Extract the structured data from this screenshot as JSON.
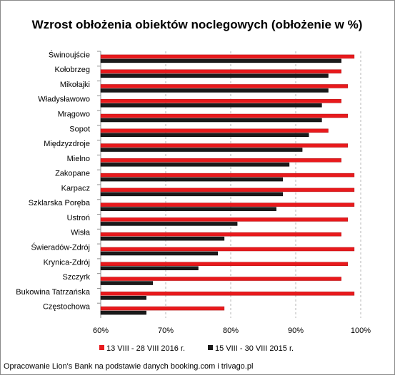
{
  "chart_data": {
    "type": "bar",
    "orientation": "horizontal",
    "title": "Wzrost obłożenia obiektów noclegowych (obłożenie w %)",
    "categories": [
      "Świnoujście",
      "Kołobrzeg",
      "Mikołajki",
      "Władysławowo",
      "Mrągowo",
      "Sopot",
      "Międzyzdroje",
      "Mielno",
      "Zakopane",
      "Karpacz",
      "Szklarska Poręba",
      "Ustroń",
      "Wisła",
      "Świeradów-Zdrój",
      "Krynica-Zdrój",
      "Szczyrk",
      "Bukowina Tatrzańska",
      "Częstochowa"
    ],
    "series": [
      {
        "name": "13 VIII - 28 VIII 2016 r.",
        "color": "#e8191c",
        "values": [
          99,
          97,
          98,
          97,
          98,
          95,
          98,
          97,
          99,
          99,
          99,
          98,
          97,
          99,
          98,
          97,
          99,
          79
        ]
      },
      {
        "name": "15 VIII - 30 VIII 2015 r.",
        "color": "#1a1a1a",
        "values": [
          97,
          95,
          95,
          94,
          94,
          92,
          91,
          89,
          88,
          88,
          87,
          81,
          79,
          78,
          75,
          68,
          67,
          67
        ]
      }
    ],
    "xlim": [
      60,
      100
    ],
    "xticks": [
      "60%",
      "70%",
      "80%",
      "90%",
      "100%"
    ],
    "xtick_values": [
      60,
      70,
      80,
      90,
      100
    ],
    "grid": "vertical dashed",
    "legend_position": "bottom"
  },
  "source_note": "Opracowanie Lion's Bank na podstawie danych booking.com i trivago.pl"
}
